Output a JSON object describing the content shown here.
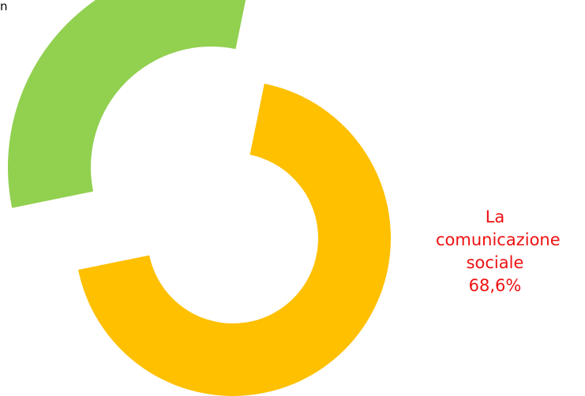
{
  "chart_data": {
    "type": "pie",
    "style": "exploded-donut",
    "slices": [
      {
        "label": "La comunicazione sociale",
        "value": 68.6,
        "value_text": "68,6%",
        "color": "#FFC000"
      },
      {
        "label": "",
        "value": 31.4,
        "value_text": "",
        "color": "#92D050"
      }
    ],
    "legend": "none",
    "slice_label_lines": [
      "La",
      "comunicazione",
      "sociale",
      "68,6%"
    ],
    "top_left_fragment": "n"
  }
}
